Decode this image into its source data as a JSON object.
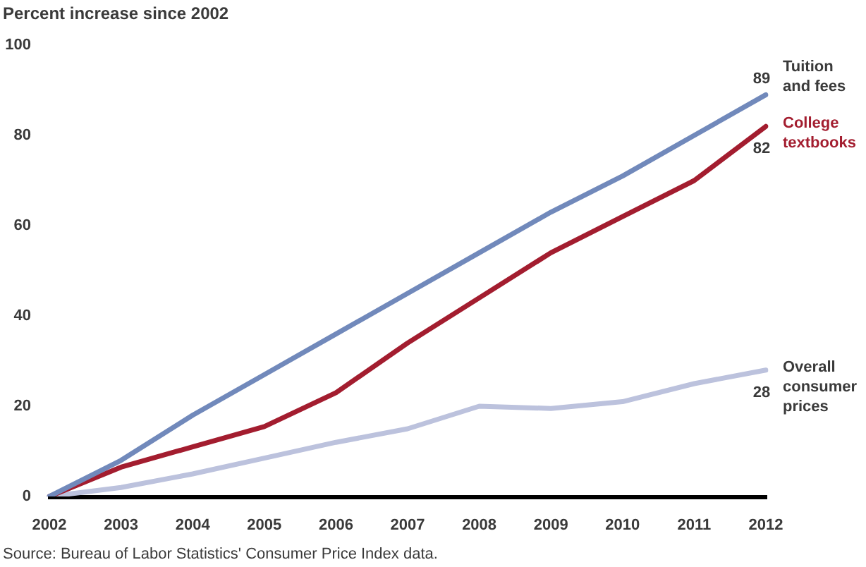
{
  "chart_data": {
    "type": "line",
    "ylabel": "Percent increase since 2002",
    "annotations": [
      "Source: Bureau of Labor Statistics' Consumer Price Index data."
    ],
    "categories": [
      "2002",
      "2003",
      "2004",
      "2005",
      "2006",
      "2007",
      "2008",
      "2009",
      "2010",
      "2011",
      "2012"
    ],
    "series": [
      {
        "name": "Tuition and fees",
        "color": "#7189bb",
        "values": [
          0,
          8,
          18,
          27,
          36,
          45,
          54,
          63,
          71,
          80,
          89
        ],
        "value_labels": [
          null,
          null,
          null,
          null,
          null,
          null,
          null,
          null,
          null,
          null,
          "89"
        ]
      },
      {
        "name": "College textbooks",
        "color": "#a31d2f",
        "values": [
          0,
          6.5,
          11,
          15.5,
          23,
          34,
          44,
          54,
          62,
          70,
          82
        ],
        "value_labels": [
          null,
          null,
          null,
          null,
          null,
          null,
          null,
          null,
          null,
          null,
          "82"
        ]
      },
      {
        "name": "Overall consumer prices",
        "color": "#bcc2dd",
        "values": [
          0,
          2,
          5,
          8.5,
          12,
          15,
          20,
          19.5,
          21,
          25,
          28
        ],
        "value_labels": [
          null,
          null,
          null,
          null,
          null,
          null,
          null,
          null,
          null,
          null,
          "28"
        ]
      }
    ],
    "ylim": [
      0,
      100
    ],
    "yticks": [
      0,
      20,
      40,
      60,
      80,
      100
    ],
    "grid": false,
    "legend": false,
    "marker": "none",
    "line_style": "solid"
  }
}
